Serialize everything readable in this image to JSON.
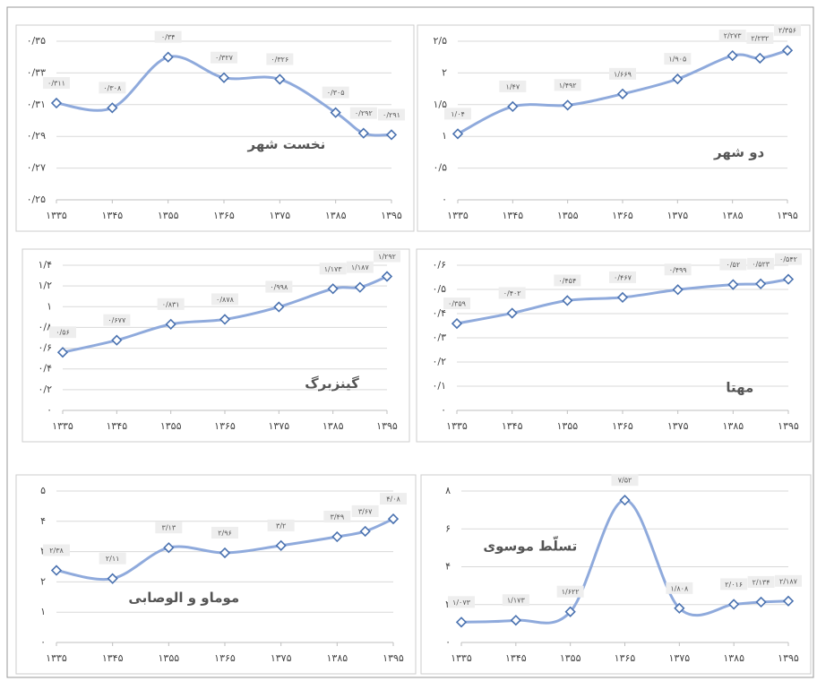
{
  "chart_data": [
    {
      "type": "line",
      "title": "نخست شهر",
      "x": [
        1335,
        1345,
        1355,
        1365,
        1375,
        1385,
        1390,
        1395
      ],
      "xlim": [
        1335,
        1395
      ],
      "xticks": [
        {
          "value": 1335,
          "label": "۱۳۳۵"
        },
        {
          "value": 1345,
          "label": "۱۳۴۵"
        },
        {
          "value": 1355,
          "label": "۱۳۵۵"
        },
        {
          "value": 1365,
          "label": "۱۳۶۵"
        },
        {
          "value": 1375,
          "label": "۱۳۷۵"
        },
        {
          "value": 1385,
          "label": "۱۳۸۵"
        },
        {
          "value": 1395,
          "label": "۱۳۹۵"
        }
      ],
      "ylim": [
        0.25,
        0.35
      ],
      "yticks": [
        {
          "value": 0.25,
          "label": "۰/۲۵"
        },
        {
          "value": 0.27,
          "label": "۰/۲۷"
        },
        {
          "value": 0.29,
          "label": "۰/۲۹"
        },
        {
          "value": 0.31,
          "label": "۰/۳۱"
        },
        {
          "value": 0.33,
          "label": "۰/۳۳"
        },
        {
          "value": 0.35,
          "label": "۰/۳۵"
        }
      ],
      "grid": true,
      "color": "#8faadc",
      "values": [
        0.311,
        0.308,
        0.34,
        0.327,
        0.326,
        0.305,
        0.292,
        0.291
      ],
      "value_labels": [
        "۰/۳۱۱",
        "۰/۳۰۸",
        "۰/۳۴",
        "۰/۳۲۷",
        "۰/۳۲۶",
        "۰/۳۰۵",
        "۰/۲۹۲",
        "۰/۲۹۱"
      ]
    },
    {
      "type": "line",
      "title": "دو شهر",
      "x": [
        1335,
        1345,
        1355,
        1365,
        1375,
        1385,
        1390,
        1395
      ],
      "xlim": [
        1335,
        1395
      ],
      "xticks": [
        {
          "value": 1335,
          "label": "۱۳۳۵"
        },
        {
          "value": 1345,
          "label": "۱۳۴۵"
        },
        {
          "value": 1355,
          "label": "۱۳۵۵"
        },
        {
          "value": 1365,
          "label": "۱۳۶۵"
        },
        {
          "value": 1375,
          "label": "۱۳۷۵"
        },
        {
          "value": 1385,
          "label": "۱۳۸۵"
        },
        {
          "value": 1395,
          "label": "۱۳۹۵"
        }
      ],
      "ylim": [
        0,
        2.5
      ],
      "yticks": [
        {
          "value": 0,
          "label": "۰"
        },
        {
          "value": 0.5,
          "label": "۰/۵"
        },
        {
          "value": 1,
          "label": "۱"
        },
        {
          "value": 1.5,
          "label": "۱/۵"
        },
        {
          "value": 2,
          "label": "۲"
        },
        {
          "value": 2.5,
          "label": "۲/۵"
        }
      ],
      "grid": true,
      "color": "#8faadc",
      "values": [
        1.04,
        1.47,
        1.492,
        1.669,
        1.905,
        2.273,
        2.232,
        2.356
      ],
      "value_labels": [
        "۱/۰۴",
        "۱/۴۷",
        "۱/۴۹۲",
        "۱/۶۶۹",
        "۱/۹۰۵",
        "۲/۲۷۳",
        "۲/۲۳۲",
        "۲/۳۵۶"
      ]
    },
    {
      "type": "line",
      "title": "گینزبرگ",
      "x": [
        1335,
        1345,
        1355,
        1365,
        1375,
        1385,
        1390,
        1395
      ],
      "xlim": [
        1335,
        1395
      ],
      "xticks": [
        {
          "value": 1335,
          "label": "۱۳۳۵"
        },
        {
          "value": 1345,
          "label": "۱۳۴۵"
        },
        {
          "value": 1355,
          "label": "۱۳۵۵"
        },
        {
          "value": 1365,
          "label": "۱۳۶۵"
        },
        {
          "value": 1375,
          "label": "۱۳۷۵"
        },
        {
          "value": 1385,
          "label": "۱۳۸۵"
        },
        {
          "value": 1395,
          "label": "۱۳۹۵"
        }
      ],
      "ylim": [
        0,
        1.4
      ],
      "yticks": [
        {
          "value": 0,
          "label": "۰"
        },
        {
          "value": 0.2,
          "label": "۰/۲"
        },
        {
          "value": 0.4,
          "label": "۰/۴"
        },
        {
          "value": 0.6,
          "label": "۰/۶"
        },
        {
          "value": 0.8,
          "label": "۰/۸"
        },
        {
          "value": 1,
          "label": "۱"
        },
        {
          "value": 1.2,
          "label": "۱/۲"
        },
        {
          "value": 1.4,
          "label": "۱/۴"
        }
      ],
      "grid": true,
      "color": "#8faadc",
      "values": [
        0.56,
        0.677,
        0.831,
        0.878,
        0.998,
        1.173,
        1.187,
        1.292
      ],
      "value_labels": [
        "۰/۵۶",
        "۰/۶۷۷",
        "۰/۸۳۱",
        "۰/۸۷۸",
        "۰/۹۹۸",
        "۱/۱۷۳",
        "۱/۱۸۷",
        "۱/۲۹۲"
      ]
    },
    {
      "type": "line",
      "title": "مهتا",
      "x": [
        1335,
        1345,
        1355,
        1365,
        1375,
        1385,
        1390,
        1395
      ],
      "xlim": [
        1335,
        1395
      ],
      "xticks": [
        {
          "value": 1335,
          "label": "۱۳۳۵"
        },
        {
          "value": 1345,
          "label": "۱۳۴۵"
        },
        {
          "value": 1355,
          "label": "۱۳۵۵"
        },
        {
          "value": 1365,
          "label": "۱۳۶۵"
        },
        {
          "value": 1375,
          "label": "۱۳۷۵"
        },
        {
          "value": 1385,
          "label": "۱۳۸۵"
        },
        {
          "value": 1395,
          "label": "۱۳۹۵"
        }
      ],
      "ylim": [
        0,
        0.6
      ],
      "yticks": [
        {
          "value": 0,
          "label": "۰"
        },
        {
          "value": 0.1,
          "label": "۰/۱"
        },
        {
          "value": 0.2,
          "label": "۰/۲"
        },
        {
          "value": 0.3,
          "label": "۰/۳"
        },
        {
          "value": 0.4,
          "label": "۰/۴"
        },
        {
          "value": 0.5,
          "label": "۰/۵"
        },
        {
          "value": 0.6,
          "label": "۰/۶"
        }
      ],
      "grid": true,
      "color": "#8faadc",
      "values": [
        0.359,
        0.402,
        0.454,
        0.467,
        0.499,
        0.52,
        0.523,
        0.542
      ],
      "value_labels": [
        "۰/۳۵۹",
        "۰/۴۰۲",
        "۰/۴۵۴",
        "۰/۴۶۷",
        "۰/۴۹۹",
        "۰/۵۲",
        "۰/۵۲۳",
        "۰/۵۴۲"
      ]
    },
    {
      "type": "line",
      "title": "موماو و الوصابی",
      "x": [
        1335,
        1345,
        1355,
        1365,
        1375,
        1385,
        1390,
        1395
      ],
      "xlim": [
        1335,
        1395
      ],
      "xticks": [
        {
          "value": 1335,
          "label": "۱۳۳۵"
        },
        {
          "value": 1345,
          "label": "۱۳۴۵"
        },
        {
          "value": 1355,
          "label": "۱۳۵۵"
        },
        {
          "value": 1365,
          "label": "۱۳۶۵"
        },
        {
          "value": 1375,
          "label": "۱۳۷۵"
        },
        {
          "value": 1385,
          "label": "۱۳۸۵"
        },
        {
          "value": 1395,
          "label": "۱۳۹۵"
        }
      ],
      "ylim": [
        0,
        5
      ],
      "yticks": [
        {
          "value": 0,
          "label": "۰"
        },
        {
          "value": 1,
          "label": "۱"
        },
        {
          "value": 2,
          "label": "۲"
        },
        {
          "value": 3,
          "label": "۳"
        },
        {
          "value": 4,
          "label": "۴"
        },
        {
          "value": 5,
          "label": "۵"
        }
      ],
      "grid": true,
      "color": "#8faadc",
      "values": [
        2.38,
        2.11,
        3.13,
        2.96,
        3.2,
        3.49,
        3.67,
        4.08
      ],
      "value_labels": [
        "۲/۳۸",
        "۲/۱۱",
        "۳/۱۳",
        "۲/۹۶",
        "۳/۲",
        "۳/۴۹",
        "۳/۶۷",
        "۴/۰۸"
      ]
    },
    {
      "type": "line",
      "title": "تسلّط موسوی",
      "x": [
        1335,
        1345,
        1355,
        1365,
        1375,
        1385,
        1390,
        1395
      ],
      "xlim": [
        1335,
        1395
      ],
      "xticks": [
        {
          "value": 1335,
          "label": "۱۳۳۵"
        },
        {
          "value": 1345,
          "label": "۱۳۴۵"
        },
        {
          "value": 1355,
          "label": "۱۳۵۵"
        },
        {
          "value": 1365,
          "label": "۱۳۶۵"
        },
        {
          "value": 1375,
          "label": "۱۳۷۵"
        },
        {
          "value": 1385,
          "label": "۱۳۸۵"
        },
        {
          "value": 1395,
          "label": "۱۳۹۵"
        }
      ],
      "ylim": [
        0,
        8
      ],
      "yticks": [
        {
          "value": 0,
          "label": "۰"
        },
        {
          "value": 2,
          "label": "۲"
        },
        {
          "value": 4,
          "label": "۴"
        },
        {
          "value": 6,
          "label": "۶"
        },
        {
          "value": 8,
          "label": "۸"
        }
      ],
      "grid": true,
      "color": "#8faadc",
      "values": [
        1.073,
        1.173,
        1.622,
        7.52,
        1.808,
        2.016,
        2.134,
        2.187
      ],
      "value_labels": [
        "۱/۰۷۳",
        "۱/۱۷۳",
        "۱/۶۲۲",
        "۷/۵۲",
        "۱/۸۰۸",
        "۲/۰۱۶",
        "۲/۱۳۴",
        "۲/۱۸۷"
      ]
    }
  ]
}
